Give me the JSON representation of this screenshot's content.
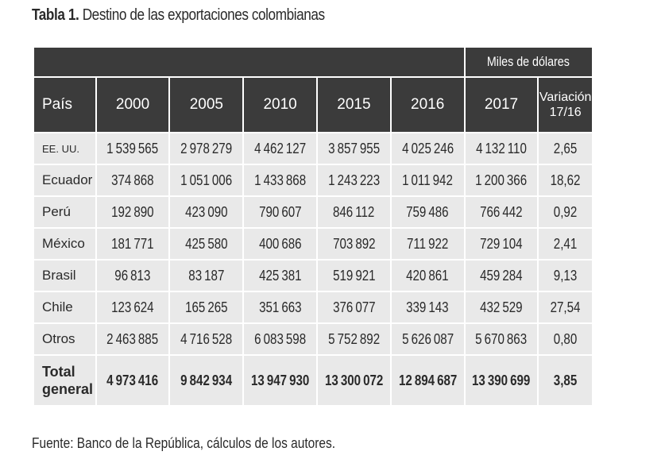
{
  "title": {
    "label": "Tabla 1.",
    "text": "Destino de las exportaciones colombianas"
  },
  "units": "Miles de dólares",
  "columns": {
    "country": "País",
    "years": [
      "2000",
      "2005",
      "2010",
      "2015",
      "2016",
      "2017"
    ],
    "variation": "Variación 17/16"
  },
  "rows": [
    {
      "country": "EE. UU.",
      "values": [
        "1539565",
        "2978279",
        "4462127",
        "3857955",
        "4025246",
        "4132110"
      ],
      "variation": "2,65"
    },
    {
      "country": "Ecuador",
      "values": [
        "374868",
        "1051006",
        "1433868",
        "1243223",
        "1011942",
        "1200366"
      ],
      "variation": "18,62"
    },
    {
      "country": "Perú",
      "values": [
        "192890",
        "423090",
        "790607",
        "846112",
        "759486",
        "766442"
      ],
      "variation": "0,92"
    },
    {
      "country": "México",
      "values": [
        "181771",
        "425580",
        "400686",
        "703892",
        "711922",
        "729104"
      ],
      "variation": "2,41"
    },
    {
      "country": "Brasil",
      "values": [
        "96813",
        "83187",
        "425381",
        "519921",
        "420861",
        "459284"
      ],
      "variation": "9,13"
    },
    {
      "country": "Chile",
      "values": [
        "123624",
        "165265",
        "351663",
        "376077",
        "339143",
        "432529"
      ],
      "variation": "27,54"
    },
    {
      "country": "Otros",
      "values": [
        "2463885",
        "4716528",
        "6083598",
        "5752892",
        "5626087",
        "5670863"
      ],
      "variation": "0,80"
    }
  ],
  "total": {
    "label": "Total general",
    "values": [
      "4973416",
      "9842934",
      "13947930",
      "13300072",
      "12894687",
      "13390699"
    ],
    "variation": "3,85"
  },
  "source": "Fuente: Banco de la República, cálculos de los autores."
}
